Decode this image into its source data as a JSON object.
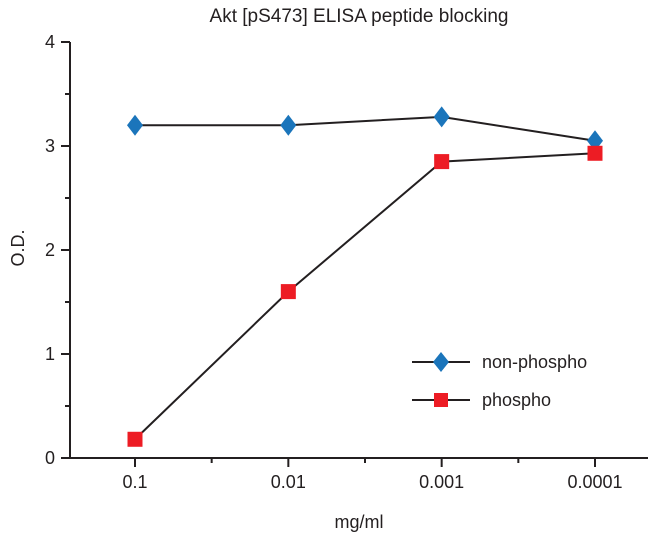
{
  "chart": {
    "title": "Akt [pS473] ELISA peptide blocking",
    "xlabel": "mg/ml",
    "ylabel": "O.D.",
    "axis_color": "#231f20",
    "line_color": "#231f20",
    "background": "#ffffff"
  },
  "chart_data": {
    "type": "line",
    "title": "Akt [pS473] ELISA peptide blocking",
    "xlabel": "mg/ml",
    "ylabel": "O.D.",
    "categories": [
      "0.1",
      "0.01",
      "0.001",
      "0.0001"
    ],
    "ylim": [
      0,
      4
    ],
    "y_major_ticks": [
      0,
      1,
      2,
      3,
      4
    ],
    "y_minor_step": 0.5,
    "grid": false,
    "legend_position": "inside-lower-right",
    "series": [
      {
        "name": "non-phospho",
        "marker": "diamond",
        "color": "#1b75bb",
        "values": [
          3.2,
          3.2,
          3.28,
          3.05
        ]
      },
      {
        "name": "phospho",
        "marker": "square",
        "color": "#ed1c24",
        "values": [
          0.18,
          1.6,
          2.85,
          2.93
        ]
      }
    ]
  }
}
